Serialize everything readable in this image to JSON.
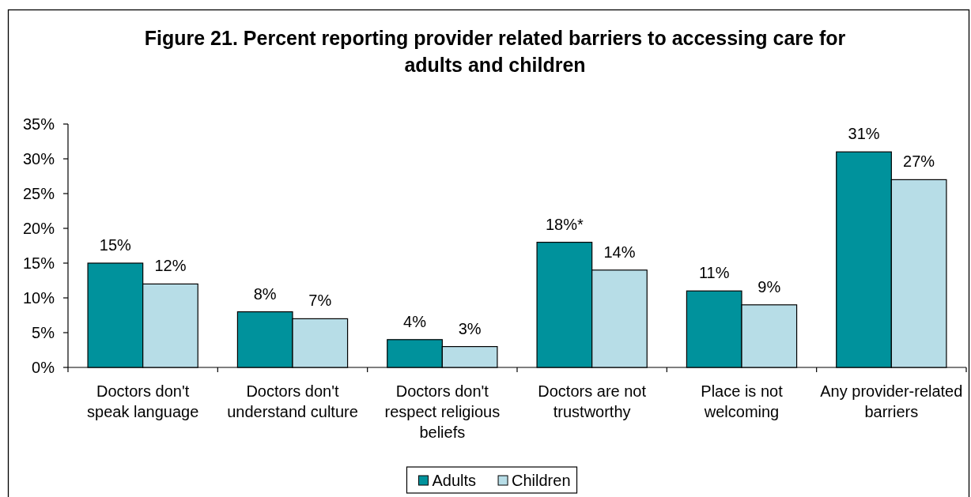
{
  "chart_data": {
    "type": "bar",
    "title": "Figure 21. Percent reporting provider related barriers to accessing care for\nadults and children",
    "categories": [
      "Doctors don't\nspeak language",
      "Doctors don't\nunderstand culture",
      "Doctors don't\nrespect religious\nbeliefs",
      "Doctors are not\ntrustworthy",
      "Place is not\nwelcoming",
      "Any provider-related\nbarriers"
    ],
    "series": [
      {
        "name": "Adults",
        "color": "#00929c",
        "values": [
          15,
          8,
          4,
          18,
          11,
          31
        ],
        "value_labels": [
          "15%",
          "8%",
          "4%",
          "18%*",
          "11%",
          "31%"
        ]
      },
      {
        "name": "Children",
        "color": "#b7dde7",
        "values": [
          12,
          7,
          3,
          14,
          9,
          27
        ],
        "value_labels": [
          "12%",
          "7%",
          "3%",
          "14%",
          "9%",
          "27%"
        ]
      }
    ],
    "ylim": [
      0,
      35
    ],
    "yticks": [
      {
        "value": 0,
        "label": "0%"
      },
      {
        "value": 5,
        "label": "5%"
      },
      {
        "value": 10,
        "label": "10%"
      },
      {
        "value": 15,
        "label": "15%"
      },
      {
        "value": 20,
        "label": "20%"
      },
      {
        "value": 25,
        "label": "25%"
      },
      {
        "value": 30,
        "label": "30%"
      },
      {
        "value": 35,
        "label": "35%"
      }
    ],
    "legend": "bottom"
  }
}
